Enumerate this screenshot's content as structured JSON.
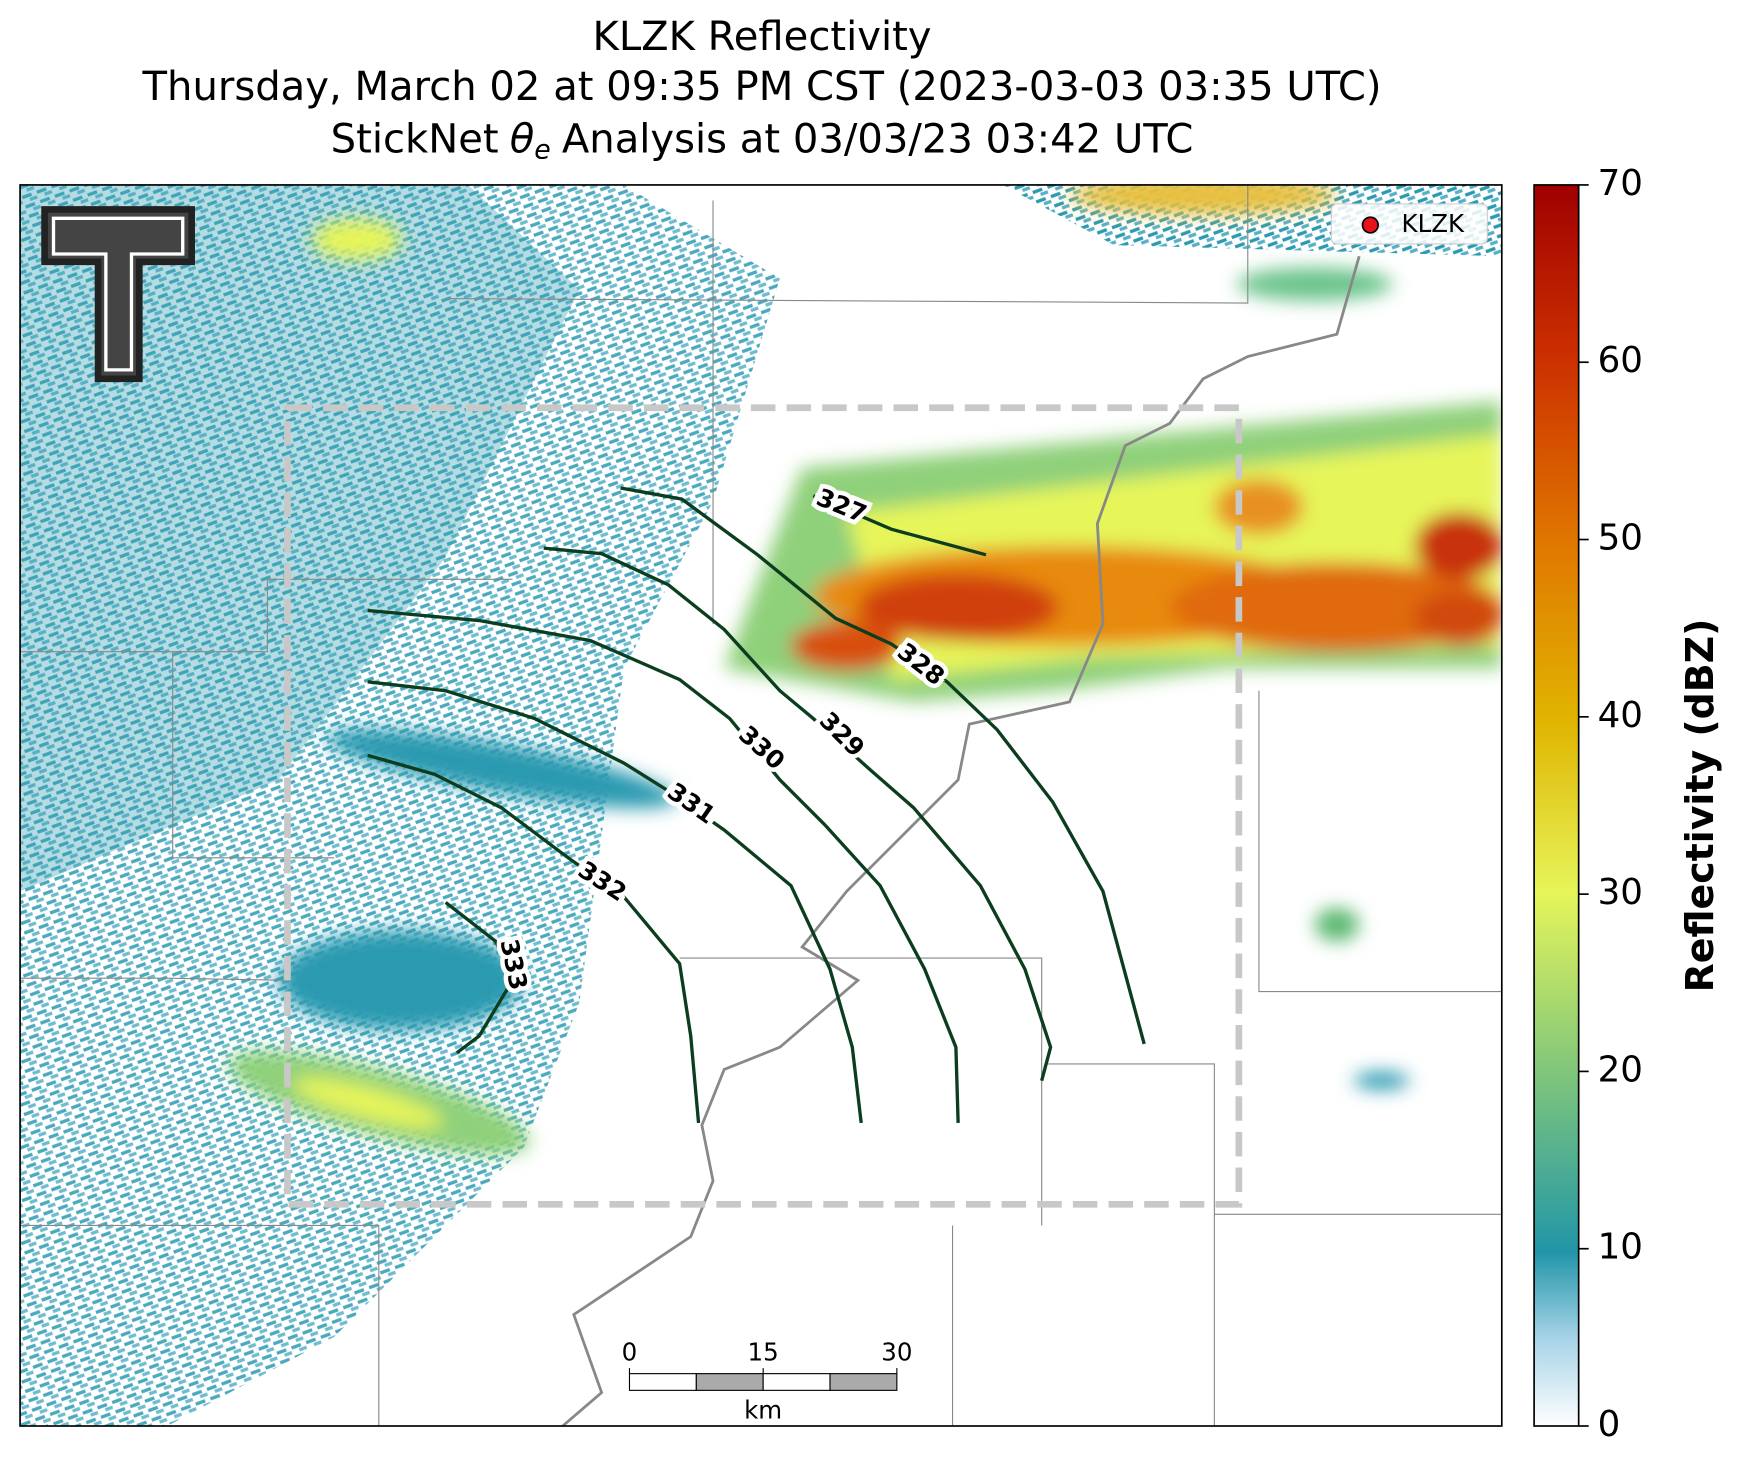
{
  "header": {
    "title": "KLZK Reflectivity",
    "subtitle": "Thursday, March 02 at 09:35 PM CST (2023-03-03 03:35 UTC)",
    "analysis": {
      "prefix": "StickNet",
      "symbol": "θ",
      "subscript": "e",
      "suffix": "Analysis at 03/03/23 03:42 UTC"
    }
  },
  "legend": {
    "label": "KLZK",
    "color": "#e8141c"
  },
  "colorbar": {
    "label": "Reflectivity (dBZ)",
    "lim": [
      0,
      70
    ],
    "ticks": [
      0,
      10,
      20,
      30,
      40,
      50,
      60,
      70
    ]
  },
  "contours": {
    "color": "#0b3d1e",
    "levels": [
      327,
      328,
      329,
      330,
      331,
      332,
      333
    ]
  },
  "scale_bar": {
    "ticks": [
      0,
      15,
      30
    ],
    "unit": "km"
  }
}
